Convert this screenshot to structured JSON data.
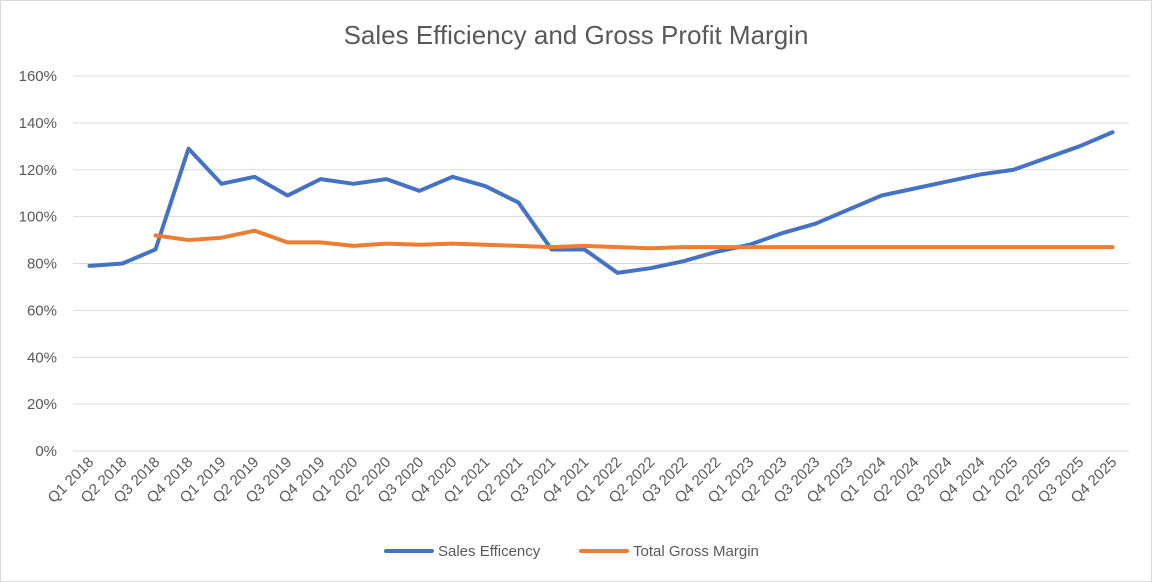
{
  "chart_data": {
    "type": "line",
    "title": "Sales Efficiency and Gross Profit Margin",
    "xlabel": "",
    "ylabel": "",
    "ylim": [
      0,
      160
    ],
    "y_tick_values": [
      0,
      20,
      40,
      60,
      80,
      100,
      120,
      140,
      160
    ],
    "y_tick_labels": [
      "0%",
      "20%",
      "40%",
      "60%",
      "80%",
      "100%",
      "120%",
      "140%",
      "160%"
    ],
    "grid": true,
    "legend_position": "bottom",
    "categories": [
      "Q1 2018",
      "Q2 2018",
      "Q3 2018",
      "Q4 2018",
      "Q1 2019",
      "Q2 2019",
      "Q3 2019",
      "Q4 2019",
      "Q1 2020",
      "Q2 2020",
      "Q3 2020",
      "Q4 2020",
      "Q1 2021",
      "Q2 2021",
      "Q3 2021",
      "Q4 2021",
      "Q1 2022",
      "Q2 2022",
      "Q3 2022",
      "Q4 2022",
      "Q1 2023",
      "Q2 2023",
      "Q3 2023",
      "Q4 2023",
      "Q1 2024",
      "Q2 2024",
      "Q3 2024",
      "Q4 2024",
      "Q1 2025",
      "Q2 2025",
      "Q3 2025",
      "Q4 2025"
    ],
    "series": [
      {
        "name": "Sales Efficency",
        "color": "#4472c4",
        "values": [
          79,
          80,
          86,
          129,
          114,
          117,
          109,
          116,
          114,
          116,
          111,
          117,
          113,
          106,
          86,
          86,
          76,
          78,
          81,
          85,
          88,
          93,
          97,
          103,
          109,
          112,
          115,
          118,
          120,
          125,
          130,
          136
        ]
      },
      {
        "name": "Total Gross Margin",
        "color": "#ed7d31",
        "values": [
          null,
          null,
          92,
          90,
          91,
          94,
          89,
          89,
          87.5,
          88.5,
          88,
          88.5,
          88,
          87.5,
          87,
          87.5,
          87,
          86.5,
          87,
          87,
          87,
          87,
          87,
          87,
          87,
          87,
          87,
          87,
          87,
          87,
          87,
          87
        ]
      }
    ]
  }
}
